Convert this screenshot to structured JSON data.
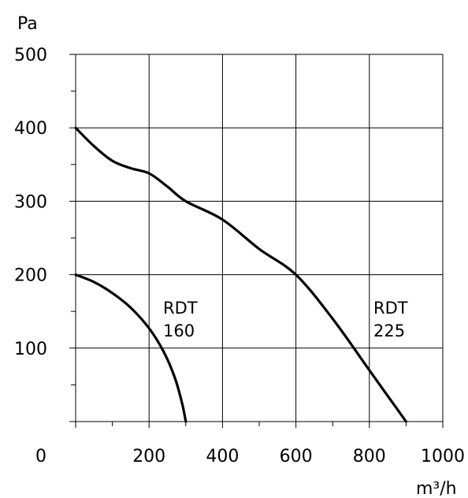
{
  "chart_data": {
    "type": "line",
    "ylabel": "Pa",
    "xlabel": "m³/h",
    "xlim": [
      0,
      1000
    ],
    "ylim": [
      0,
      500
    ],
    "grid": true,
    "x_ticks": [
      {
        "value": 0,
        "label": "0"
      },
      {
        "value": 200,
        "label": "200"
      },
      {
        "value": 400,
        "label": "400"
      },
      {
        "value": 600,
        "label": "600"
      },
      {
        "value": 800,
        "label": "800"
      },
      {
        "value": 1000,
        "label": "1000"
      }
    ],
    "y_ticks": [
      {
        "value": 100,
        "label": "100"
      },
      {
        "value": 200,
        "label": "200"
      },
      {
        "value": 300,
        "label": "300"
      },
      {
        "value": 400,
        "label": "400"
      },
      {
        "value": 500,
        "label": "500"
      }
    ],
    "series": [
      {
        "name": "RDT 160",
        "label_lines": [
          "RDT",
          "160"
        ],
        "points": [
          [
            0,
            200
          ],
          [
            50,
            190
          ],
          [
            100,
            175
          ],
          [
            150,
            155
          ],
          [
            200,
            127
          ],
          [
            240,
            95
          ],
          [
            270,
            60
          ],
          [
            290,
            25
          ],
          [
            300,
            0
          ]
        ]
      },
      {
        "name": "RDT 225",
        "label_lines": [
          "RDT",
          "225"
        ],
        "points": [
          [
            0,
            400
          ],
          [
            50,
            375
          ],
          [
            100,
            355
          ],
          [
            150,
            345
          ],
          [
            200,
            338
          ],
          [
            250,
            320
          ],
          [
            300,
            300
          ],
          [
            400,
            275
          ],
          [
            500,
            235
          ],
          [
            600,
            200
          ],
          [
            700,
            140
          ],
          [
            800,
            70
          ],
          [
            900,
            0
          ]
        ]
      }
    ]
  }
}
